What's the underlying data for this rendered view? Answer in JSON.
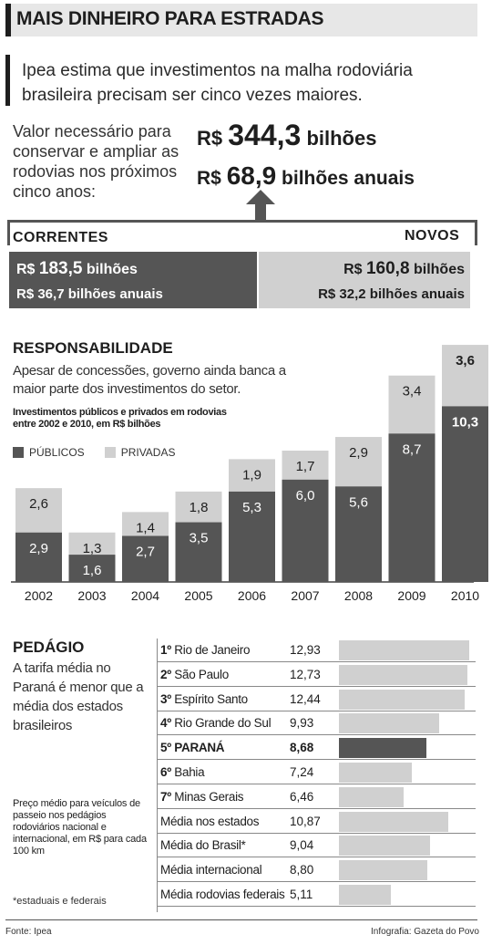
{
  "header": {
    "title": "MAIS DINHEIRO PARA ESTRADAS",
    "intro": "Ipea estima que investimentos na malha rodoviária brasileira precisam ser cinco vezes maiores."
  },
  "need": {
    "label": "Valor necessário para conservar e ampliar as rodovias nos próximos cinco anos:",
    "total_currency": "R$",
    "total_number": "344,3",
    "total_unit": "bilhões",
    "annual_currency": "R$",
    "annual_number": "68,9",
    "annual_unit": "bilhões anuais"
  },
  "split": {
    "correntes": {
      "label": "CORRENTES",
      "currency1": "R$",
      "number1": "183,5",
      "unit1": "bilhões",
      "line2": "R$ 36,7 bilhões anuais"
    },
    "novos": {
      "label": "NOVOS",
      "currency1": "R$",
      "number1": "160,8",
      "unit1": "bilhões",
      "line2": "R$ 32,2 bilhões anuais"
    }
  },
  "colors": {
    "dark": "#555555",
    "light": "#d0d0d0",
    "text": "#1e1e1e"
  },
  "responsabilidade": {
    "title": "RESPONSABILIDADE",
    "subtitle": "Apesar de concessões, governo ainda banca a maior parte dos investimentos do setor.",
    "note": "Investimentos públicos e privados em rodovias entre 2002 e 2010, em R$ bilhões"
  },
  "chart_data": [
    {
      "type": "bar",
      "stacked": true,
      "categories": [
        "2002",
        "2003",
        "2004",
        "2005",
        "2006",
        "2007",
        "2008",
        "2009",
        "2010"
      ],
      "series": [
        {
          "name": "PÚBLICOS",
          "color": "#555555",
          "values": [
            2.9,
            1.6,
            2.7,
            3.5,
            5.3,
            6.0,
            5.6,
            8.7,
            10.3
          ],
          "labels": [
            "2,9",
            "1,6",
            "2,7",
            "3,5",
            "5,3",
            "6,0",
            "5,6",
            "8,7",
            "10,3"
          ]
        },
        {
          "name": "PRIVADAS",
          "color": "#d0d0d0",
          "values": [
            2.6,
            1.3,
            1.4,
            1.8,
            1.9,
            1.7,
            2.9,
            3.4,
            3.6
          ],
          "labels": [
            "2,6",
            "1,3",
            "1,4",
            "1,8",
            "1,9",
            "1,7",
            "2,9",
            "3,4",
            "3,6"
          ]
        }
      ],
      "ylim": [
        0,
        14
      ],
      "legend": "top-left",
      "grid": false
    },
    {
      "type": "bar",
      "orientation": "horizontal",
      "categories": [
        "Rio de Janeiro",
        "São Paulo",
        "Espírito Santo",
        "Rio Grande do Sul",
        "PARANÁ",
        "Bahia",
        "Minas Gerais",
        "Média nos estados",
        "Média do Brasil*",
        "Média internacional",
        "Média rodovias federais"
      ],
      "ranks": [
        "1º",
        "2º",
        "3º",
        "4º",
        "5º",
        "6º",
        "7º",
        "",
        "",
        "",
        ""
      ],
      "values": [
        12.93,
        12.73,
        12.44,
        9.93,
        8.68,
        7.24,
        6.46,
        10.87,
        9.04,
        8.8,
        5.11
      ],
      "labels": [
        "12,93",
        "12,73",
        "12,44",
        "9,93",
        "8,68",
        "7,24",
        "6,46",
        "10,87",
        "9,04",
        "8,80",
        "5,11"
      ],
      "highlight": "PARANÁ",
      "xlim": [
        0,
        13.2
      ]
    }
  ],
  "pedagio": {
    "title": "PEDÁGIO",
    "subtitle": "A tarifa média no Paraná é menor que a média dos estados brasileiros",
    "note": "Preço médio para veículos de passeio nos pedágios rodoviários nacional e internacional, em R$ para cada 100 km",
    "footnote": "*estaduais e federais"
  },
  "footer": {
    "source": "Fonte: Ipea",
    "credit": "Infografia: Gazeta do Povo"
  }
}
